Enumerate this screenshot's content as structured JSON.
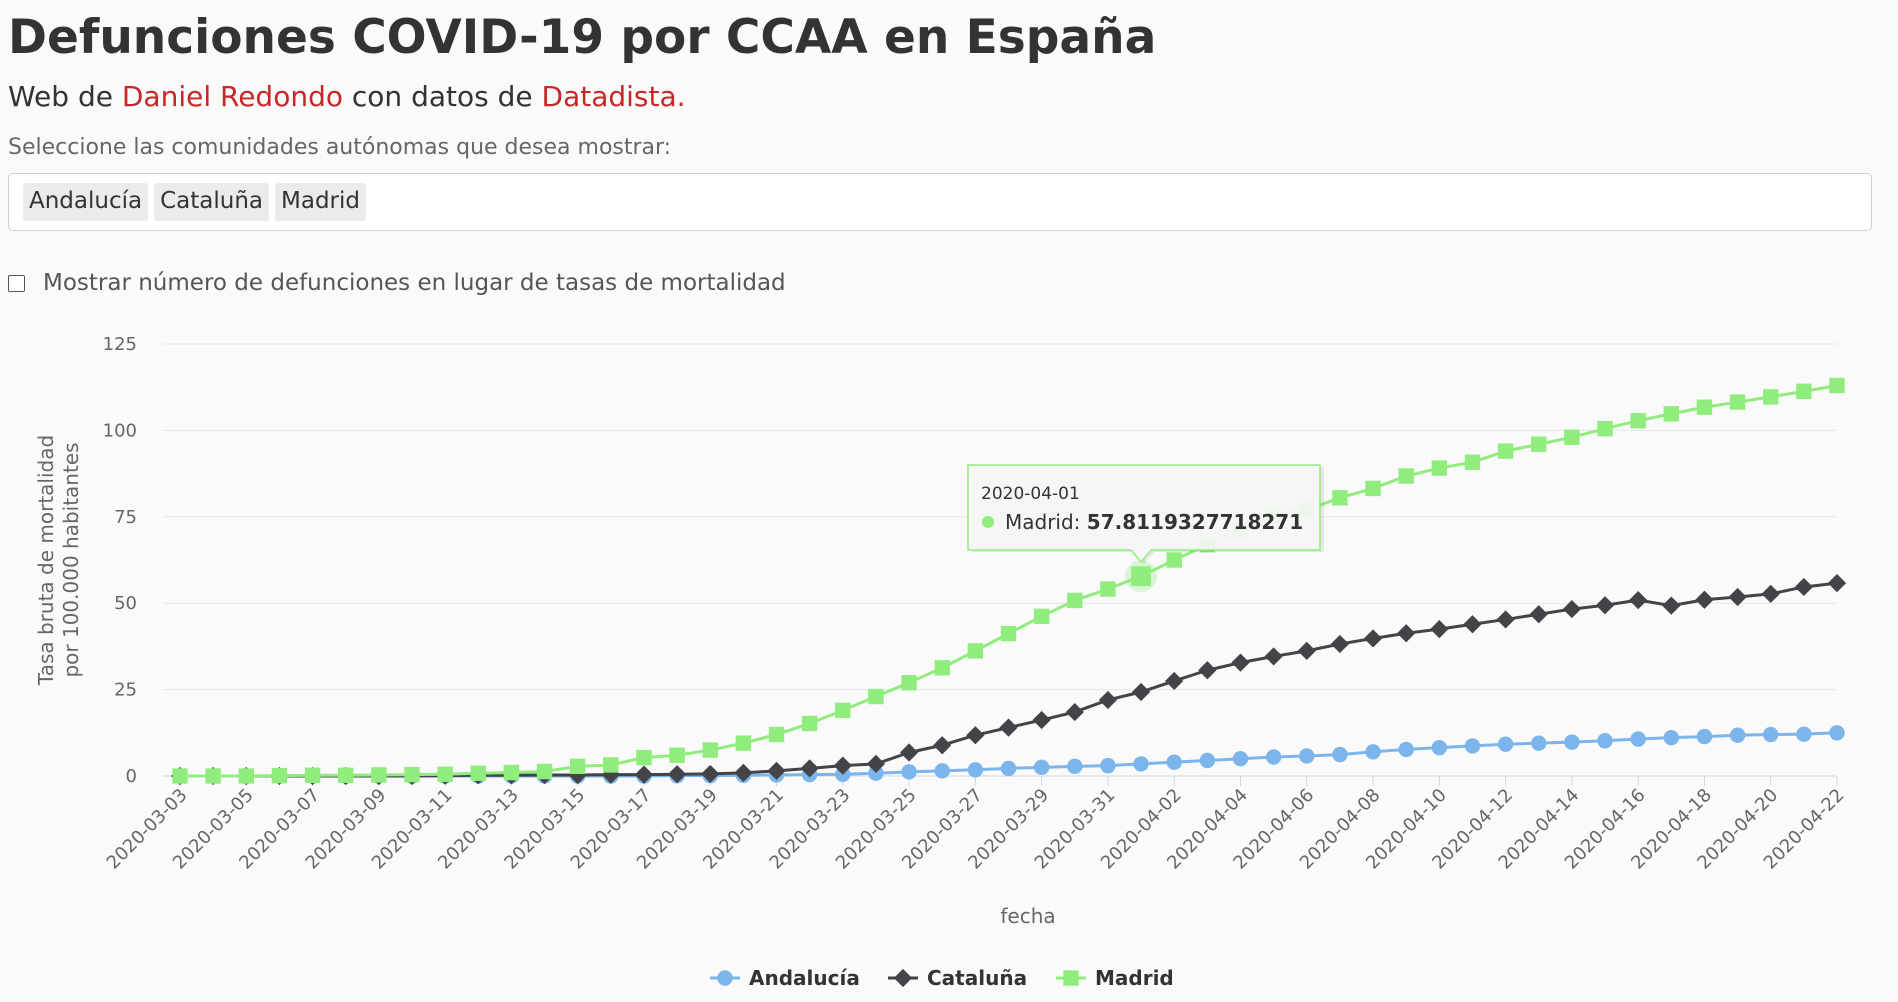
{
  "page": {
    "title": "Defunciones COVID-19 por CCAA en España",
    "subtitle_prefix": "Web de ",
    "subtitle_author": "Daniel Redondo",
    "subtitle_middle": " con datos de ",
    "subtitle_source": "Datadista.",
    "select_prompt": "Seleccione las comunidades autónomas que desea mostrar:",
    "selected_tags": [
      "Andalucía",
      "Cataluña",
      "Madrid"
    ],
    "checkbox_label": "Mostrar número de defunciones en lugar de tasas de mortalidad",
    "checkbox_checked": false,
    "link_color": "#c62828"
  },
  "tooltip": {
    "date": "2020-04-01",
    "series": "Madrid",
    "value_text": "57.8119327718271",
    "series_index": 2,
    "point_index": 29
  },
  "chart_data": {
    "type": "line",
    "xlabel": "fecha",
    "ylabel_line1": "Tasa bruta de mortalidad",
    "ylabel_line2": "por 100.000 habitantes",
    "ylim": [
      0,
      125
    ],
    "yticks": [
      0,
      25,
      50,
      75,
      100,
      125
    ],
    "grid": true,
    "legend_position": "bottom-center",
    "x_tick_labels": [
      "2020-03-03",
      "2020-03-05",
      "2020-03-07",
      "2020-03-09",
      "2020-03-11",
      "2020-03-13",
      "2020-03-15",
      "2020-03-17",
      "2020-03-19",
      "2020-03-21",
      "2020-03-23",
      "2020-03-25",
      "2020-03-27",
      "2020-03-29",
      "2020-03-31",
      "2020-04-02",
      "2020-04-04",
      "2020-04-06",
      "2020-04-08",
      "2020-04-10",
      "2020-04-12",
      "2020-04-14",
      "2020-04-16",
      "2020-04-18",
      "2020-04-20",
      "2020-04-22"
    ],
    "x": [
      "2020-03-03",
      "2020-03-04",
      "2020-03-05",
      "2020-03-06",
      "2020-03-07",
      "2020-03-08",
      "2020-03-09",
      "2020-03-10",
      "2020-03-11",
      "2020-03-12",
      "2020-03-13",
      "2020-03-14",
      "2020-03-15",
      "2020-03-16",
      "2020-03-17",
      "2020-03-18",
      "2020-03-19",
      "2020-03-20",
      "2020-03-21",
      "2020-03-22",
      "2020-03-23",
      "2020-03-24",
      "2020-03-25",
      "2020-03-26",
      "2020-03-27",
      "2020-03-28",
      "2020-03-29",
      "2020-03-30",
      "2020-03-31",
      "2020-04-01",
      "2020-04-02",
      "2020-04-03",
      "2020-04-04",
      "2020-04-05",
      "2020-04-06",
      "2020-04-07",
      "2020-04-08",
      "2020-04-09",
      "2020-04-10",
      "2020-04-11",
      "2020-04-12",
      "2020-04-13",
      "2020-04-14",
      "2020-04-15",
      "2020-04-16",
      "2020-04-17",
      "2020-04-18",
      "2020-04-19",
      "2020-04-20",
      "2020-04-21",
      "2020-04-22"
    ],
    "series": [
      {
        "name": "Andalucía",
        "color": "#7cb5ec",
        "marker": "circle",
        "values": [
          0,
          0,
          0,
          0,
          0,
          0,
          0,
          0,
          0,
          0,
          0,
          0,
          0,
          0,
          0,
          0.1,
          0.1,
          0.2,
          0.3,
          0.4,
          0.5,
          0.8,
          1.2,
          1.5,
          1.8,
          2.2,
          2.5,
          2.8,
          3.0,
          3.5,
          4.0,
          4.5,
          5.0,
          5.5,
          5.8,
          6.2,
          7.0,
          7.7,
          8.2,
          8.7,
          9.2,
          9.5,
          9.8,
          10.2,
          10.7,
          11.1,
          11.4,
          11.8,
          12.0,
          12.1,
          12.5
        ]
      },
      {
        "name": "Cataluña",
        "color": "#434348",
        "marker": "diamond",
        "values": [
          0,
          0,
          0,
          0,
          0,
          0,
          0,
          0,
          0.1,
          0.2,
          0.2,
          0.3,
          0.3,
          0.4,
          0.4,
          0.5,
          0.6,
          0.9,
          1.5,
          2.2,
          3.0,
          3.5,
          6.8,
          8.9,
          11.8,
          14.0,
          16.2,
          18.5,
          22.0,
          24.3,
          27.5,
          30.6,
          32.8,
          34.6,
          36.2,
          38.2,
          39.8,
          41.3,
          42.5,
          43.9,
          45.3,
          46.8,
          48.3,
          49.4,
          50.9,
          49.3,
          51.0,
          51.8,
          52.7,
          54.7,
          55.8
        ]
      },
      {
        "name": "Madrid",
        "color": "#90ed7d",
        "marker": "square",
        "values": [
          0,
          0,
          0,
          0.1,
          0.2,
          0.2,
          0.3,
          0.4,
          0.5,
          0.8,
          1.0,
          1.3,
          2.8,
          3.2,
          5.3,
          6.0,
          7.5,
          9.5,
          12.0,
          15.2,
          19.0,
          23.0,
          27.0,
          31.3,
          36.2,
          41.2,
          46.2,
          50.8,
          54.1,
          57.8119327718271,
          62.5,
          66.9,
          71.1,
          75.5,
          77.0,
          80.5,
          83.2,
          86.8,
          89.1,
          90.8,
          94.0,
          96.0,
          98.0,
          100.5,
          102.8,
          104.8,
          106.7,
          108.2,
          109.7,
          111.3,
          113.0
        ]
      }
    ]
  }
}
